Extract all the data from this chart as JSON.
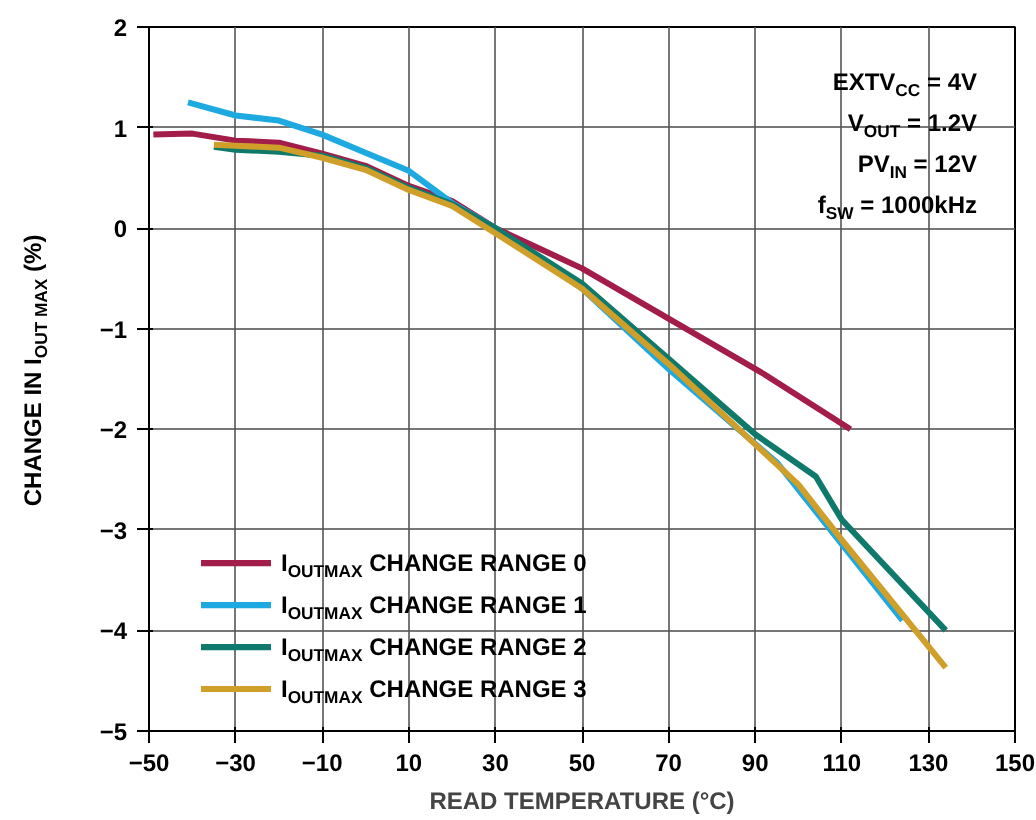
{
  "chart_data": {
    "type": "line",
    "xlabel": "READ TEMPERATURE (°C)",
    "ylabel": "CHANGE IN I$_{OUT MAX}$ (%)",
    "xlim": [
      -50,
      150
    ],
    "ylim": [
      -5,
      2
    ],
    "xticks": [
      -50,
      -30,
      -10,
      10,
      30,
      50,
      70,
      90,
      110,
      130,
      150
    ],
    "yticks": [
      -5,
      -4,
      -3,
      -2,
      -1,
      0,
      1,
      2
    ],
    "grid": true,
    "legend": "bottom left",
    "line_style": "solid",
    "series": [
      {
        "name": "I$_{OUTMAX}$ CHANGE RANGE 0",
        "color": "#a31d4a",
        "x": [
          -49,
          -40,
          -30,
          -20,
          -10,
          0,
          10,
          20,
          30,
          40,
          50,
          70,
          92,
          112
        ],
        "values": [
          0.93,
          0.94,
          0.87,
          0.85,
          0.74,
          0.62,
          0.42,
          0.27,
          0,
          -0.2,
          -0.4,
          -0.9,
          -1.45,
          -2.0
        ]
      },
      {
        "name": "I$_{OUTMAX}$ CHANGE RANGE 1",
        "color": "#1ea9e1",
        "x": [
          -41,
          -30,
          -20,
          -10,
          0,
          10,
          20,
          30,
          50,
          70,
          95,
          124
        ],
        "values": [
          1.25,
          1.12,
          1.07,
          0.93,
          0.75,
          0.57,
          0.25,
          0,
          -0.6,
          -1.4,
          -2.33,
          -3.9
        ]
      },
      {
        "name": "I$_{OUTMAX}$ CHANGE RANGE 2",
        "color": "#0f7a6b",
        "x": [
          -35,
          -30,
          -20,
          -10,
          0,
          10,
          20,
          30,
          50,
          70,
          90,
          104,
          110,
          134
        ],
        "values": [
          0.81,
          0.78,
          0.76,
          0.72,
          0.6,
          0.4,
          0.24,
          0,
          -0.55,
          -1.3,
          -2.05,
          -2.47,
          -2.9,
          -4.0
        ]
      },
      {
        "name": "I$_{OUTMAX}$ CHANGE RANGE 3",
        "color": "#cf9f2a",
        "x": [
          -35,
          -30,
          -20,
          -10,
          0,
          10,
          20,
          30,
          50,
          70,
          90,
          100,
          110,
          134
        ],
        "values": [
          0.83,
          0.82,
          0.8,
          0.7,
          0.58,
          0.38,
          0.22,
          -0.05,
          -0.6,
          -1.35,
          -2.15,
          -2.55,
          -3.1,
          -4.37
        ]
      }
    ],
    "annotations": [
      "EXTV$_{CC}$ = 4V",
      "V$_{OUT}$ = 1.2V",
      "PV$_{IN}$ = 12V",
      "f$_{SW}$ = 1000kHz"
    ]
  }
}
